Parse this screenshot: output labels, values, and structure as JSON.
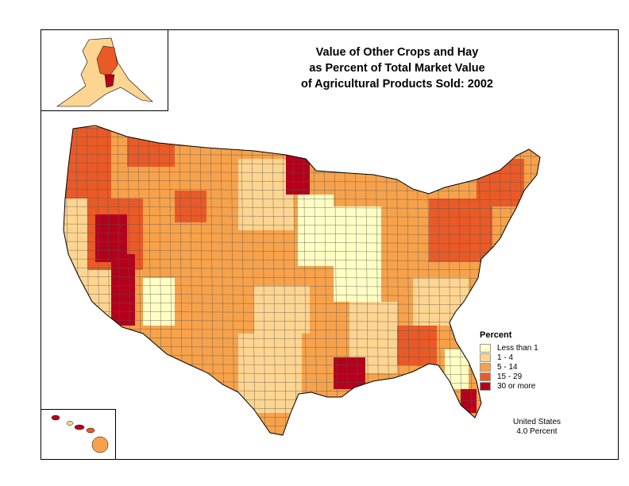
{
  "title": {
    "line1": "Value of Other Crops and Hay",
    "line2": "as Percent of Total Market Value",
    "line3": "of Agricultural Products Sold:  2002"
  },
  "legend": {
    "title": "Percent",
    "items": [
      {
        "label": "Less than 1",
        "color": "#ffffc4"
      },
      {
        "label": "1 - 4",
        "color": "#fdd591"
      },
      {
        "label": "5 - 14",
        "color": "#f7a24a"
      },
      {
        "label": "15 - 29",
        "color": "#ea5a27"
      },
      {
        "label": "30 or more",
        "color": "#b5001c"
      }
    ]
  },
  "summary": {
    "region": "United States",
    "value": "4.0 Percent"
  },
  "insets": {
    "alaska_icon": "alaska-map",
    "hawaii_icon": "hawaii-map"
  }
}
